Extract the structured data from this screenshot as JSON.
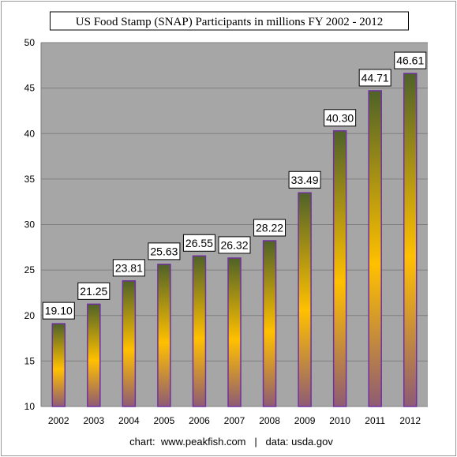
{
  "chart_data": {
    "type": "bar",
    "title": "US Food Stamp (SNAP) Participants in millions FY 2002 - 2012",
    "xlabel": "",
    "ylabel": "",
    "categories": [
      "2002",
      "2003",
      "2004",
      "2005",
      "2006",
      "2007",
      "2008",
      "2009",
      "2010",
      "2011",
      "2012"
    ],
    "values": [
      19.1,
      21.25,
      23.81,
      25.63,
      26.55,
      26.32,
      28.22,
      33.49,
      40.3,
      44.71,
      46.61
    ],
    "data_labels": [
      "19.10",
      "21.25",
      "23.81",
      "25.63",
      "26.55",
      "26.32",
      "28.22",
      "33.49",
      "40.30",
      "44.71",
      "46.61"
    ],
    "yticks": [
      "10",
      "15",
      "20",
      "25",
      "30",
      "35",
      "40",
      "45",
      "50"
    ],
    "ylim": [
      10,
      50
    ],
    "grid": true,
    "legend": "none",
    "footer": "chart:  www.peakfish.com   |   data: usda.gov",
    "colors": {
      "plot_background": "#a6a6a6",
      "gridline": "#7f7f7f",
      "bar_top": "#4f6228",
      "bar_middle": "#ffc000",
      "bar_bottom": "#8e5b74",
      "bar_border": "#7030a0"
    }
  }
}
